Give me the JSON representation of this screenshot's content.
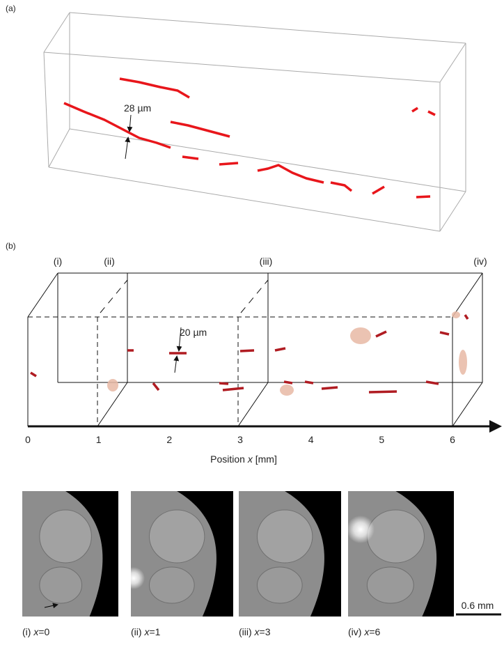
{
  "panel_a": {
    "label": "(a)",
    "annotation": "28 µm"
  },
  "panel_b": {
    "label": "(b)",
    "section_labels": [
      "(i)",
      "(ii)",
      "(iii)",
      "(iv)"
    ],
    "annotation": "20 µm",
    "axis": {
      "label_prefix": "Position ",
      "label_var": "x",
      "label_suffix": " [mm]",
      "ticks": [
        0,
        1,
        2,
        3,
        4,
        5,
        6
      ]
    }
  },
  "panel_c": {
    "captions": [
      {
        "prefix": "(i) ",
        "var": "x",
        "value": "=0"
      },
      {
        "prefix": "(ii) ",
        "var": "x",
        "value": "=1"
      },
      {
        "prefix": "(iii) ",
        "var": "x",
        "value": "=3"
      },
      {
        "prefix": "(iv) ",
        "var": "x",
        "value": "=6"
      }
    ],
    "scale_bar": "0.6 mm"
  }
}
